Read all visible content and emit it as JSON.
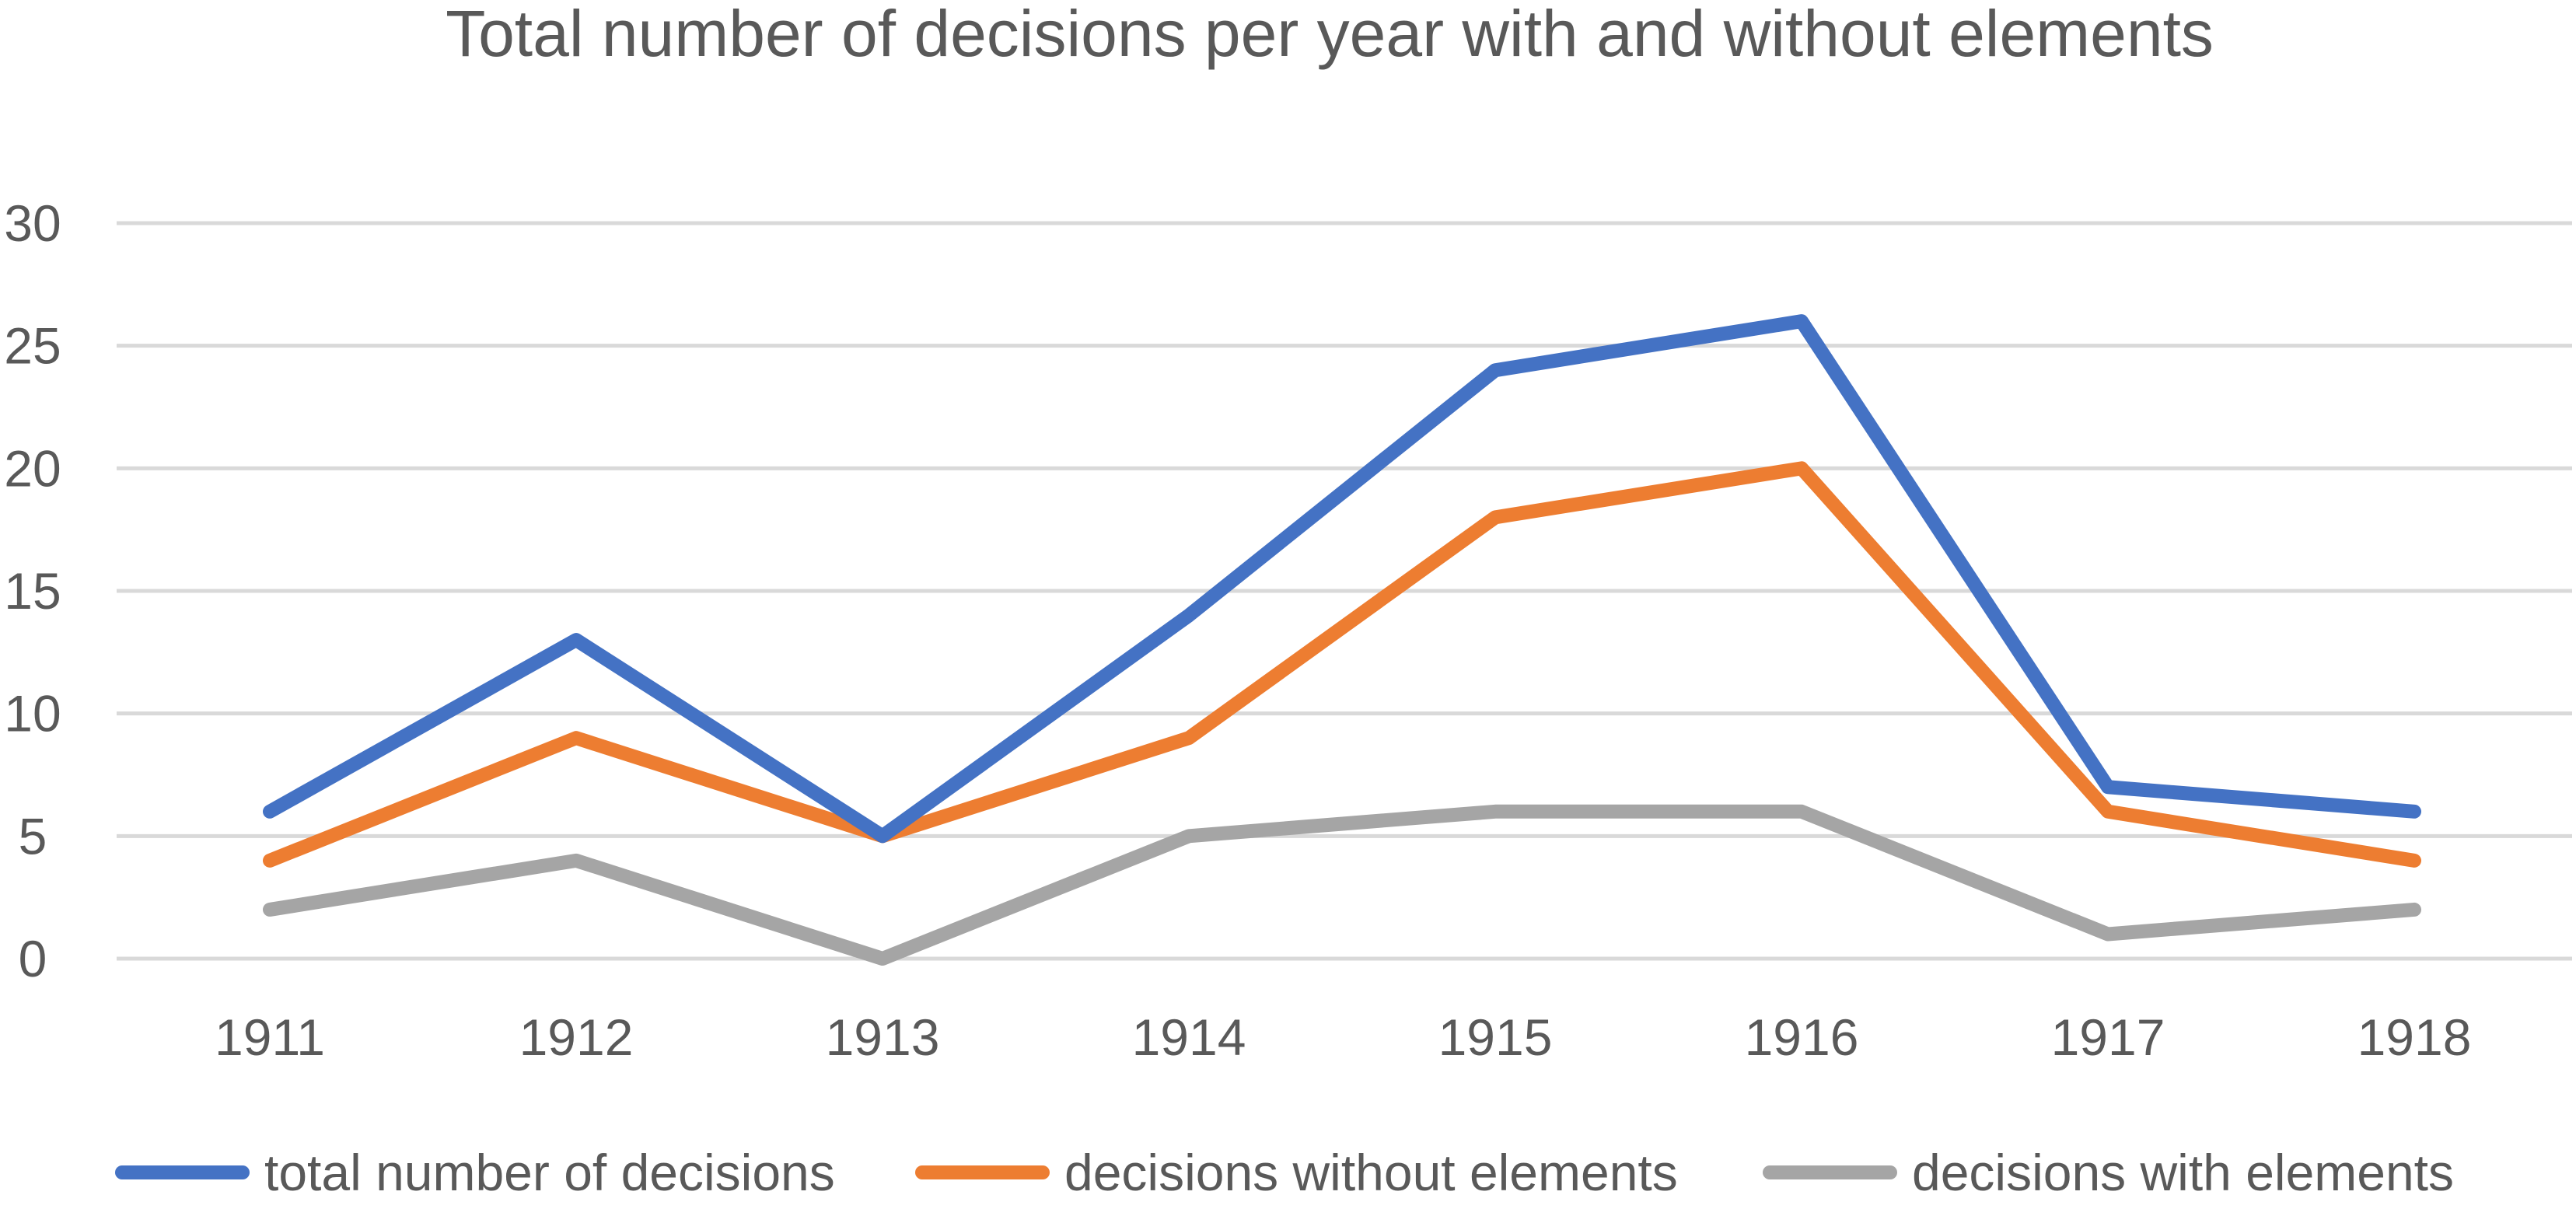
{
  "chart_data": {
    "type": "line",
    "title": "Total number of decisions per year with and without elements",
    "xlabel": "",
    "ylabel": "",
    "categories": [
      "1911",
      "1912",
      "1913",
      "1914",
      "1915",
      "1916",
      "1917",
      "1918"
    ],
    "ylim": [
      0,
      30
    ],
    "yticks": [
      0,
      5,
      10,
      15,
      20,
      25,
      30
    ],
    "grid": true,
    "legend_position": "bottom",
    "series": [
      {
        "name": "total number of decisions",
        "color": "#4472c4",
        "values": [
          6,
          13,
          5,
          14,
          24,
          26,
          7,
          6
        ]
      },
      {
        "name": "decisions without elements",
        "color": "#ed7d31",
        "values": [
          4,
          9,
          5,
          9,
          18,
          20,
          6,
          4
        ]
      },
      {
        "name": "decisions with elements",
        "color": "#a5a5a5",
        "values": [
          2,
          4,
          0,
          5,
          6,
          6,
          1,
          2
        ]
      }
    ]
  }
}
